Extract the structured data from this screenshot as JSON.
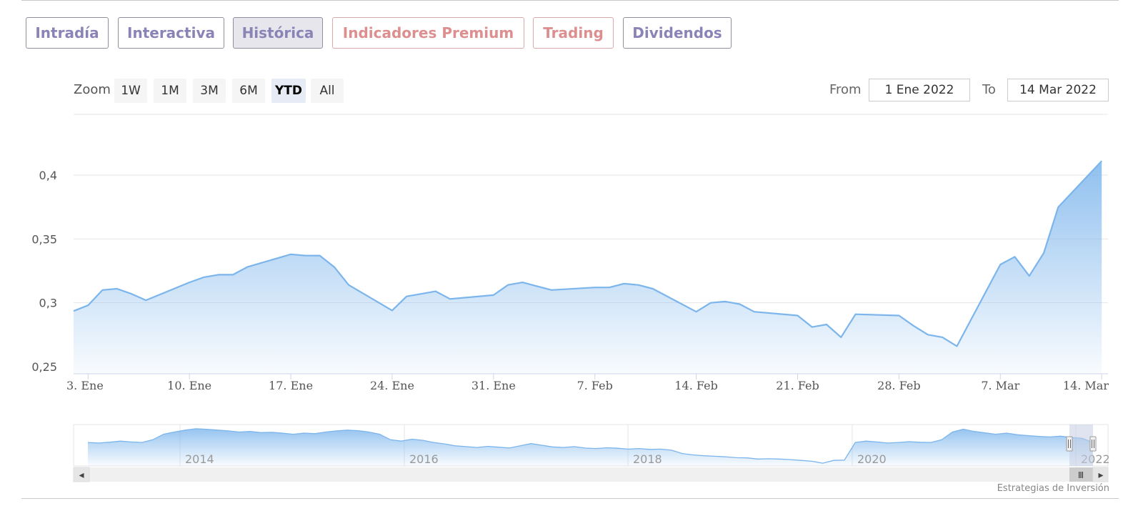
{
  "tabs": [
    {
      "label": "Intradía",
      "style": "normal"
    },
    {
      "label": "Interactiva",
      "style": "normal"
    },
    {
      "label": "Histórica",
      "style": "active"
    },
    {
      "label": "Indicadores Premium",
      "style": "premium"
    },
    {
      "label": "Trading",
      "style": "premium"
    },
    {
      "label": "Dividendos",
      "style": "normal"
    }
  ],
  "range_selector": {
    "zoom_label": "Zoom",
    "buttons": [
      "1W",
      "1M",
      "3M",
      "6M",
      "YTD",
      "All"
    ],
    "selected": "YTD",
    "from_label": "From",
    "from_value": "1 Ene 2022",
    "to_label": "To",
    "to_value": "14 Mar 2022"
  },
  "colors": {
    "tab_text": "#8a84b6",
    "tab_premium": "#dd8f8f",
    "series_line": "#7cb5ec",
    "navigator_mask": "#c5cde3"
  },
  "chart_data": {
    "type": "area",
    "title": "",
    "xlabel": "",
    "ylabel": "",
    "ylim": [
      0.25,
      0.4
    ],
    "y_ticks": [
      "0,25",
      "0,3",
      "0,35",
      "0,4"
    ],
    "x_ticks": [
      "3. Ene",
      "10. Ene",
      "17. Ene",
      "24. Ene",
      "31. Ene",
      "7. Feb",
      "14. Feb",
      "21. Feb",
      "28. Feb",
      "7. Mar",
      "14. Mar"
    ],
    "grid": true,
    "legend": "none",
    "series": [
      {
        "x": [
          "2022-01-03",
          "2022-01-04",
          "2022-01-05",
          "2022-01-06",
          "2022-01-07",
          "2022-01-10",
          "2022-01-11",
          "2022-01-12",
          "2022-01-13",
          "2022-01-14",
          "2022-01-17",
          "2022-01-18",
          "2022-01-19",
          "2022-01-20",
          "2022-01-21",
          "2022-01-24",
          "2022-01-25",
          "2022-01-26",
          "2022-01-27",
          "2022-01-28",
          "2022-01-31",
          "2022-02-01",
          "2022-02-02",
          "2022-02-03",
          "2022-02-04",
          "2022-02-07",
          "2022-02-08",
          "2022-02-09",
          "2022-02-10",
          "2022-02-11",
          "2022-02-14",
          "2022-02-15",
          "2022-02-16",
          "2022-02-17",
          "2022-02-18",
          "2022-02-21",
          "2022-02-22",
          "2022-02-23",
          "2022-02-24",
          "2022-02-25",
          "2022-02-28",
          "2022-03-01",
          "2022-03-02",
          "2022-03-03",
          "2022-03-04",
          "2022-03-07",
          "2022-03-08",
          "2022-03-09",
          "2022-03-10",
          "2022-03-11",
          "2022-03-14"
        ],
        "values": [
          0.298,
          0.31,
          0.311,
          0.307,
          0.302,
          0.316,
          0.32,
          0.322,
          0.322,
          0.328,
          0.338,
          0.337,
          0.337,
          0.328,
          0.314,
          0.294,
          0.305,
          0.307,
          0.309,
          0.303,
          0.306,
          0.314,
          0.316,
          0.313,
          0.31,
          0.312,
          0.312,
          0.315,
          0.314,
          0.311,
          0.293,
          0.3,
          0.301,
          0.299,
          0.293,
          0.29,
          0.281,
          0.283,
          0.273,
          0.291,
          0.29,
          0.282,
          0.275,
          0.273,
          0.266,
          0.33,
          0.336,
          0.321,
          0.339,
          0.375,
          0.411
        ]
      }
    ],
    "navigator": {
      "x_ticks": [
        "2014",
        "2016",
        "2018",
        "2020",
        "2022"
      ],
      "values": [
        0.3,
        0.298,
        0.301,
        0.305,
        0.302,
        0.3,
        0.31,
        0.33,
        0.338,
        0.345,
        0.35,
        0.348,
        0.345,
        0.342,
        0.338,
        0.34,
        0.336,
        0.337,
        0.334,
        0.33,
        0.334,
        0.332,
        0.338,
        0.342,
        0.345,
        0.343,
        0.338,
        0.33,
        0.31,
        0.305,
        0.312,
        0.308,
        0.3,
        0.295,
        0.288,
        0.285,
        0.282,
        0.286,
        0.283,
        0.28,
        0.288,
        0.296,
        0.29,
        0.284,
        0.282,
        0.285,
        0.28,
        0.278,
        0.281,
        0.279,
        0.276,
        0.278,
        0.275,
        0.276,
        0.272,
        0.26,
        0.255,
        0.252,
        0.25,
        0.248,
        0.245,
        0.244,
        0.24,
        0.241,
        0.24,
        0.238,
        0.235,
        0.232,
        0.225,
        0.235,
        0.236,
        0.3,
        0.305,
        0.302,
        0.298,
        0.3,
        0.303,
        0.301,
        0.3,
        0.31,
        0.338,
        0.348,
        0.34,
        0.335,
        0.33,
        0.334,
        0.328,
        0.325,
        0.322,
        0.32,
        0.323,
        0.318,
        0.315,
        0.3
      ]
    }
  },
  "scrollbar": {
    "left_arrow": "◂",
    "right_arrow": "▸",
    "grip": "Ⅲ"
  },
  "credits": "Estrategias de Inversión"
}
